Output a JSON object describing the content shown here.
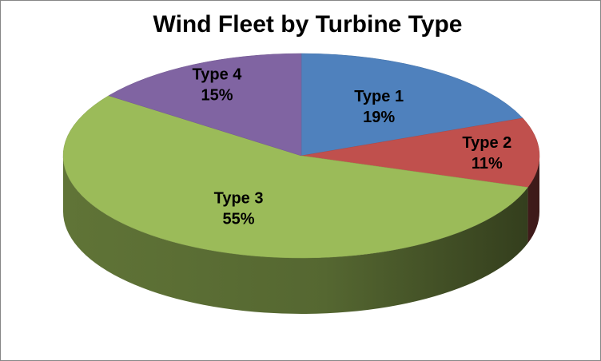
{
  "chart_data": {
    "type": "pie",
    "title": "Wind Fleet by Turbine Type",
    "categories": [
      "Type 1",
      "Type 2",
      "Type 3",
      "Type 4"
    ],
    "values": [
      19,
      11,
      55,
      15
    ],
    "value_labels": [
      "19%",
      "11%",
      "55%",
      "15%"
    ],
    "colors": [
      "#4f81bd",
      "#c0504d",
      "#9bbb59",
      "#8064a2"
    ]
  }
}
